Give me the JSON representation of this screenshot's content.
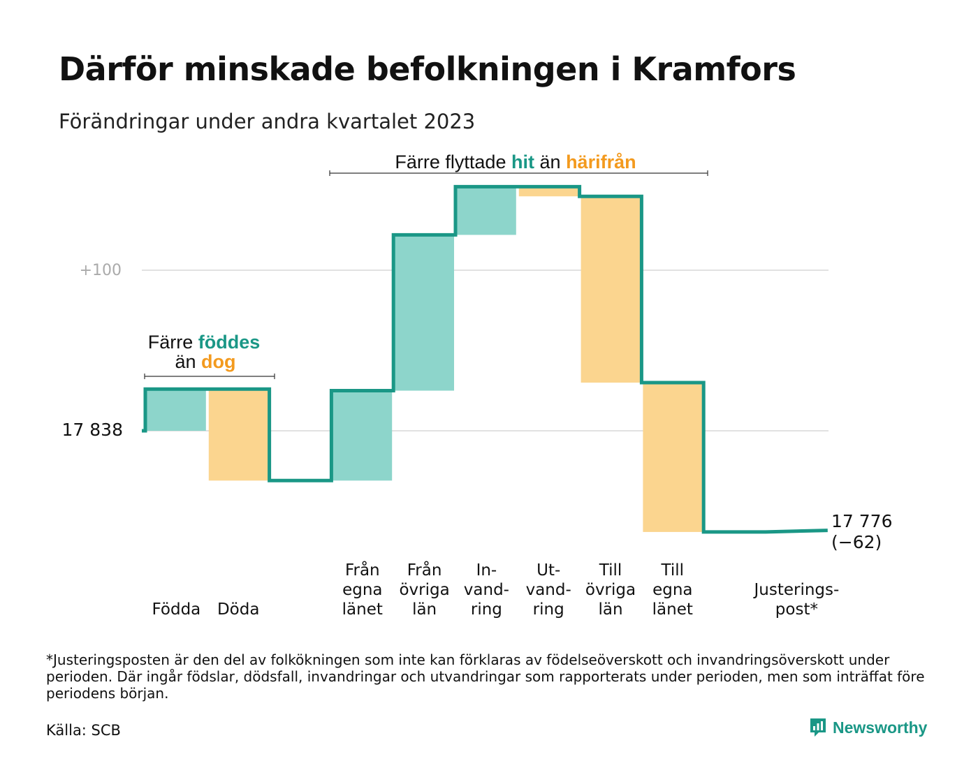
{
  "title": "Därför minskade befolkningen i Kramfors",
  "subtitle": "Förändringar under andra kvartalet 2023",
  "annotations": {
    "births_line1_a": "Färre",
    "births_line1_b": "föddes",
    "births_line2_a": "än",
    "births_line2_b": "dog",
    "migration_a": "Färre flyttade",
    "migration_b": "hit",
    "migration_c": "än",
    "migration_d": "härifrån"
  },
  "chart_data": {
    "type": "waterfall",
    "start_value": 17838,
    "start_label": "17 838",
    "end_value": 17776,
    "end_label": "17 776",
    "end_change_label": "(−62)",
    "y_tick_label": "+100",
    "y_tick_value_relative": 100,
    "grid": true,
    "categories": [
      {
        "label_lines": [
          "Födda"
        ],
        "value": 26,
        "kind": "inflow"
      },
      {
        "label_lines": [
          "Döda"
        ],
        "value": -57,
        "kind": "outflow"
      },
      {
        "label_lines": [],
        "value": 0,
        "kind": "gap"
      },
      {
        "label_lines": [
          "Från",
          "egna",
          "länet"
        ],
        "value": 56,
        "kind": "inflow"
      },
      {
        "label_lines": [
          "Från",
          "övriga",
          "län"
        ],
        "value": 97,
        "kind": "inflow"
      },
      {
        "label_lines": [
          "In-",
          "vand-",
          "ring"
        ],
        "value": 30,
        "kind": "inflow"
      },
      {
        "label_lines": [
          "Ut-",
          "vand-",
          "ring"
        ],
        "value": -6,
        "kind": "outflow"
      },
      {
        "label_lines": [
          "Till",
          "övriga",
          "län"
        ],
        "value": -116,
        "kind": "outflow"
      },
      {
        "label_lines": [
          "Till",
          "egna",
          "länet"
        ],
        "value": -93,
        "kind": "outflow"
      },
      {
        "label_lines": [],
        "value": 0,
        "kind": "gap"
      },
      {
        "label_lines": [
          "Justerings-",
          "post*"
        ],
        "value": 1,
        "kind": "adjustment"
      }
    ]
  },
  "footnote": "*Justeringsposten är den del av folkökningen som inte kan förklaras av födelseöverskott och invandringsöverskott under perioden. Där ingår födslar, dödsfall, invandringar och utvandringar som rapporterats under perioden, men som inträffat före periodens början.",
  "source": "Källa: SCB",
  "brand": "Newsworthy",
  "colors": {
    "inflow": "#8dd5cb",
    "outflow": "#fbd58f",
    "line": "#1a9786",
    "grid": "#e1e1e1",
    "tick_text": "#aaaaaa",
    "orange_text": "#f39a1e"
  }
}
